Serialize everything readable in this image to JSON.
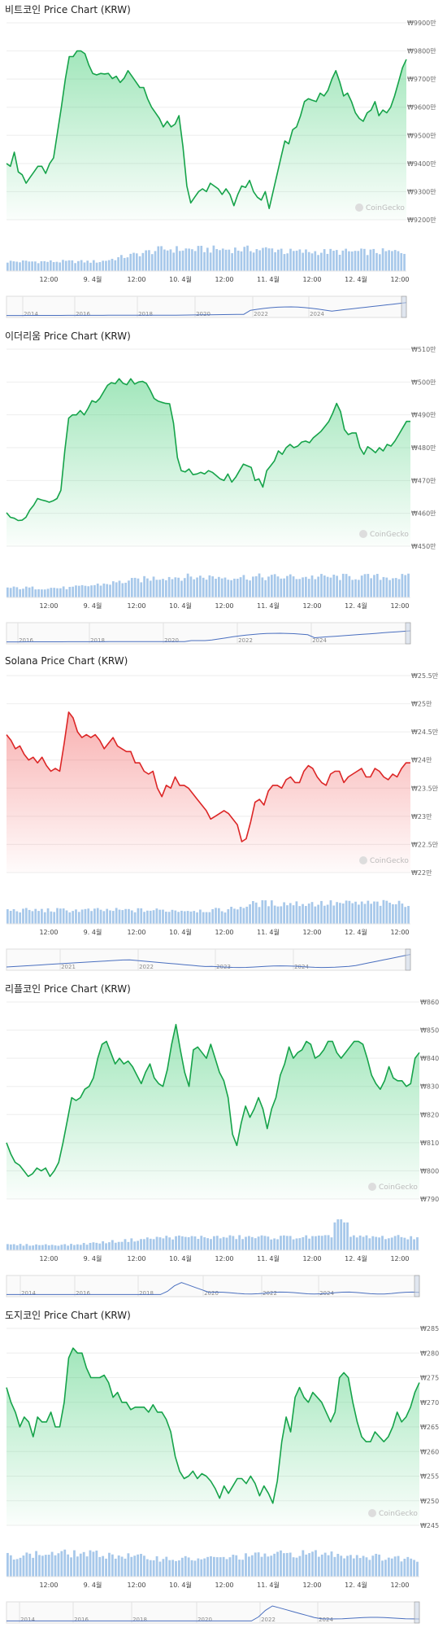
{
  "watermark": "CoinGecko",
  "x_ticks": [
    "12:00",
    "9. 4월",
    "12:00",
    "10. 4월",
    "12:00",
    "11. 4월",
    "12:00",
    "12. 4월",
    "12:00"
  ],
  "chart_data": [
    {
      "type": "area",
      "title": "비트코인 Price Chart (KRW)",
      "y_ticks": [
        "₩9900만",
        "₩9800만",
        "₩9700만",
        "₩9600만",
        "₩9500만",
        "₩9400만",
        "₩9300만",
        "₩9200만"
      ],
      "ylim": [
        9200,
        9900
      ],
      "unit": "만 KRW",
      "color": "#16a34a",
      "fill": "#22c55e",
      "values": [
        9400,
        9390,
        9440,
        9370,
        9360,
        9330,
        9350,
        9370,
        9390,
        9390,
        9365,
        9400,
        9420,
        9510,
        9600,
        9700,
        9780,
        9780,
        9800,
        9800,
        9790,
        9750,
        9720,
        9715,
        9720,
        9718,
        9720,
        9702,
        9710,
        9688,
        9703,
        9730,
        9710,
        9690,
        9670,
        9670,
        9630,
        9600,
        9580,
        9560,
        9530,
        9550,
        9530,
        9540,
        9570,
        9460,
        9320,
        9260,
        9280,
        9300,
        9310,
        9300,
        9330,
        9320,
        9310,
        9290,
        9310,
        9290,
        9250,
        9290,
        9320,
        9315,
        9340,
        9300,
        9280,
        9270,
        9300,
        9240,
        9300,
        9360,
        9420,
        9480,
        9470,
        9520,
        9530,
        9570,
        9620,
        9630,
        9625,
        9620,
        9650,
        9640,
        9660,
        9700,
        9730,
        9690,
        9640,
        9650,
        9620,
        9580,
        9560,
        9550,
        9580,
        9590,
        9620,
        9570,
        9590,
        9580,
        9600,
        9640,
        9690,
        9740,
        9770
      ]
    },
    {
      "type": "area",
      "title": "이더리움 Price Chart (KRW)",
      "y_ticks": [
        "₩510만",
        "₩500만",
        "₩490만",
        "₩480만",
        "₩470만",
        "₩460만",
        "₩450만"
      ],
      "ylim": [
        450,
        510
      ],
      "unit": "만 KRW",
      "color": "#16a34a",
      "fill": "#22c55e",
      "values": [
        460.2,
        458.8,
        458.5,
        457.8,
        457.9,
        458.8,
        461,
        462.5,
        464.5,
        464.1,
        463.8,
        463.4,
        463.8,
        464.5,
        467,
        479,
        489,
        490,
        490,
        491.3,
        490,
        492,
        494.3,
        493.8,
        495,
        497,
        499,
        499.8,
        499.5,
        501,
        499.6,
        499.2,
        501,
        499.4,
        500,
        500.2,
        499.6,
        497.5,
        495,
        494.2,
        493.8,
        493.5,
        493.4,
        487.5,
        477,
        473,
        472.6,
        473.5,
        471.8,
        472,
        472.5,
        472,
        473,
        472.5,
        471.5,
        470.5,
        470,
        472,
        469.5,
        471,
        473,
        475,
        474.5,
        474,
        470,
        470.5,
        468,
        473,
        474.5,
        476,
        479,
        478,
        480,
        481,
        480,
        480.5,
        481.7,
        482,
        481.5,
        483,
        484,
        485,
        486.5,
        488,
        490.5,
        493.5,
        491,
        485.5,
        484,
        484.5,
        484.5,
        480,
        478,
        480.3,
        479.5,
        478.5,
        480,
        479,
        481,
        480.5,
        482,
        484,
        486,
        488,
        488
      ]
    },
    {
      "type": "area",
      "title": "Solana Price Chart (KRW)",
      "y_ticks": [
        "₩25.5만",
        "₩25만",
        "₩24.5만",
        "₩24만",
        "₩23.5만",
        "₩23만",
        "₩22.5만",
        "₩22만"
      ],
      "ylim": [
        22.0,
        25.5
      ],
      "unit": "만 KRW",
      "color": "#dc2626",
      "fill": "#ef4444",
      "values": [
        24.45,
        24.35,
        24.2,
        24.25,
        24.1,
        24.0,
        24.05,
        23.95,
        24.05,
        23.9,
        23.8,
        23.85,
        23.8,
        24.3,
        24.85,
        24.75,
        24.5,
        24.4,
        24.45,
        24.4,
        24.45,
        24.35,
        24.2,
        24.3,
        24.4,
        24.25,
        24.2,
        24.15,
        24.15,
        23.95,
        23.95,
        23.8,
        23.75,
        23.8,
        23.5,
        23.35,
        23.55,
        23.5,
        23.7,
        23.55,
        23.55,
        23.5,
        23.4,
        23.3,
        23.2,
        23.1,
        22.95,
        23.0,
        23.05,
        23.1,
        23.05,
        22.95,
        22.85,
        22.55,
        22.6,
        22.9,
        23.25,
        23.3,
        23.2,
        23.45,
        23.55,
        23.55,
        23.5,
        23.65,
        23.7,
        23.6,
        23.6,
        23.8,
        23.9,
        23.85,
        23.7,
        23.6,
        23.55,
        23.75,
        23.8,
        23.8,
        23.6,
        23.7,
        23.75,
        23.8,
        23.85,
        23.7,
        23.7,
        23.85,
        23.8,
        23.7,
        23.65,
        23.75,
        23.7,
        23.85,
        23.95,
        23.95
      ]
    },
    {
      "type": "area",
      "title": "리플코인 Price Chart (KRW)",
      "y_ticks": [
        "₩860",
        "₩850",
        "₩840",
        "₩830",
        "₩820",
        "₩810",
        "₩800",
        "₩790"
      ],
      "ylim": [
        790,
        860
      ],
      "unit": "KRW",
      "color": "#16a34a",
      "fill": "#22c55e",
      "values": [
        810,
        806,
        803,
        802,
        800,
        798,
        799,
        801,
        800,
        801,
        798,
        800,
        803,
        810,
        818,
        826,
        825,
        826,
        829,
        830,
        833,
        840,
        845,
        846,
        842,
        838,
        840,
        838,
        839,
        837,
        834,
        831,
        835,
        838,
        833,
        831,
        830,
        836,
        845,
        852,
        843,
        835,
        830,
        843,
        844,
        842,
        840,
        845,
        840,
        835,
        832,
        826,
        813,
        809,
        817,
        823,
        819,
        822,
        826,
        822,
        815,
        822,
        826,
        834,
        838,
        844,
        840,
        842,
        843,
        846,
        845,
        840,
        841,
        843,
        846,
        846,
        842,
        840,
        842,
        844,
        846,
        846,
        845,
        840,
        834,
        831,
        829,
        832,
        837,
        833,
        832,
        832,
        830,
        831,
        840,
        842
      ]
    },
    {
      "type": "area",
      "title": "도지코인 Price Chart (KRW)",
      "y_ticks": [
        "₩285",
        "₩280",
        "₩275",
        "₩270",
        "₩265",
        "₩260",
        "₩255",
        "₩250",
        "₩245"
      ],
      "ylim": [
        245,
        285
      ],
      "unit": "KRW",
      "color": "#16a34a",
      "fill": "#22c55e",
      "values": [
        273,
        270,
        268,
        265,
        267,
        266,
        263,
        267,
        266,
        266,
        268,
        265,
        265,
        270,
        279,
        281,
        280,
        280,
        277,
        275,
        275,
        275,
        275.5,
        274,
        271,
        272,
        270,
        270,
        268.5,
        269,
        269,
        269,
        268,
        269.5,
        268,
        268,
        266.5,
        264,
        259,
        256,
        254.5,
        255,
        256,
        254.5,
        255.5,
        255,
        254,
        252.5,
        250.5,
        253,
        251.5,
        253,
        254.5,
        254.5,
        253.5,
        255,
        253.5,
        251,
        253,
        251.5,
        249.5,
        254,
        262,
        267,
        264,
        271,
        273,
        271,
        270,
        272,
        271,
        270,
        268,
        266,
        268,
        275,
        276,
        275,
        270,
        266,
        263,
        262,
        262,
        264,
        263,
        262,
        263,
        265,
        268,
        266,
        267,
        269,
        272,
        274
      ]
    }
  ]
}
